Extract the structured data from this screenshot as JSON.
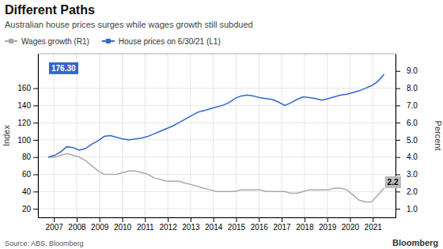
{
  "chart_data": {
    "type": "line",
    "title": "Different Paths",
    "subtitle": "Australian house prices surges while wages growth still subdued",
    "source": "Source: ABS, Bloomberg",
    "watermark": "Bloomberg",
    "ylabel": "Index",
    "y2label": "Percent",
    "x": [
      2006.75,
      2007.023148,
      2007.296296,
      2007.569444,
      2007.842593,
      2008.115741,
      2008.388889,
      2008.662037,
      2008.935185,
      2009.208333,
      2009.481481,
      2009.75463,
      2010.027778,
      2010.300926,
      2010.574074,
      2010.847222,
      2011.12037,
      2011.393519,
      2011.666667,
      2011.939815,
      2012.212963,
      2012.486111,
      2012.759259,
      2013.032407,
      2013.305556,
      2013.578704,
      2013.851852,
      2014.125,
      2014.398148,
      2014.671296,
      2014.944444,
      2015.217593,
      2015.490741,
      2015.763889,
      2016.037037,
      2016.310185,
      2016.583333,
      2016.856481,
      2017.12963,
      2017.402778,
      2017.675926,
      2017.949074,
      2018.222222,
      2018.49537,
      2018.768519,
      2019.041667,
      2019.314815,
      2019.587963,
      2019.861111,
      2020.134259,
      2020.407407,
      2020.680556,
      2020.953704,
      2021.226852,
      2021.5
    ],
    "series": [
      {
        "name": "Wages growth (R1)",
        "color": "#aaaaaa",
        "axis": "y2",
        "values": [
          4.0,
          4.0,
          4.1,
          4.2,
          4.1,
          4.0,
          3.8,
          3.5,
          3.2,
          3.0,
          3.0,
          3.0,
          3.1,
          3.2,
          3.2,
          3.1,
          3.0,
          2.8,
          2.7,
          2.6,
          2.6,
          2.6,
          2.5,
          2.4,
          2.3,
          2.2,
          2.1,
          2.0,
          2.0,
          2.0,
          2.0,
          2.1,
          2.1,
          2.1,
          2.1,
          2.0,
          2.0,
          2.0,
          2.0,
          1.9,
          1.9,
          2.0,
          2.1,
          2.1,
          2.1,
          2.1,
          2.2,
          2.2,
          2.1,
          1.8,
          1.5,
          1.4,
          1.4,
          1.8,
          2.2
        ]
      },
      {
        "name": "House prices on 6/30/21 (L1)",
        "color": "#3366cc",
        "values": [
          80,
          82,
          86,
          92,
          91,
          88,
          90,
          95,
          99,
          104,
          105,
          103,
          101,
          100,
          101,
          102,
          104,
          107,
          110,
          113,
          116,
          120,
          124,
          128,
          132,
          134,
          136,
          138,
          140,
          143,
          148,
          151,
          152,
          151,
          149,
          148,
          147,
          144,
          140,
          143,
          147,
          150,
          149,
          148,
          146,
          148,
          150,
          152,
          153,
          155,
          157,
          160,
          163,
          168,
          176.3
        ]
      }
    ],
    "annotations": [
      {
        "text": "176.30",
        "x": 2006.75,
        "y": 176.3,
        "axis": "y"
      },
      {
        "text": "2.2",
        "x": 2021.5,
        "y": 2.2,
        "axis": "y2"
      }
    ],
    "xlim": [
      2006.3,
      2022.0
    ],
    "xticks": [
      2007,
      2008,
      2009,
      2010,
      2011,
      2012,
      2013,
      2014,
      2015,
      2016,
      2017,
      2018,
      2019,
      2020,
      2021
    ],
    "ylim": [
      10,
      200
    ],
    "yticks": [
      20,
      40,
      60,
      80,
      100,
      120,
      140,
      160
    ],
    "y2lim": [
      0.5,
      10.0
    ],
    "y2ticks": [
      {
        "value": 1.0,
        "label": "1.0"
      },
      {
        "value": 2.0,
        "label": "2.0"
      },
      {
        "value": 3.0,
        "label": "3.0"
      },
      {
        "value": 4.0,
        "label": "4.0"
      },
      {
        "value": 5.0,
        "label": "5.0"
      },
      {
        "value": 6.0,
        "label": "6.0"
      },
      {
        "value": 7.0,
        "label": "7.0"
      },
      {
        "value": 8.0,
        "label": "8.0"
      },
      {
        "value": 9.0,
        "label": "9.0"
      }
    ],
    "grid": true,
    "legend": "top"
  }
}
